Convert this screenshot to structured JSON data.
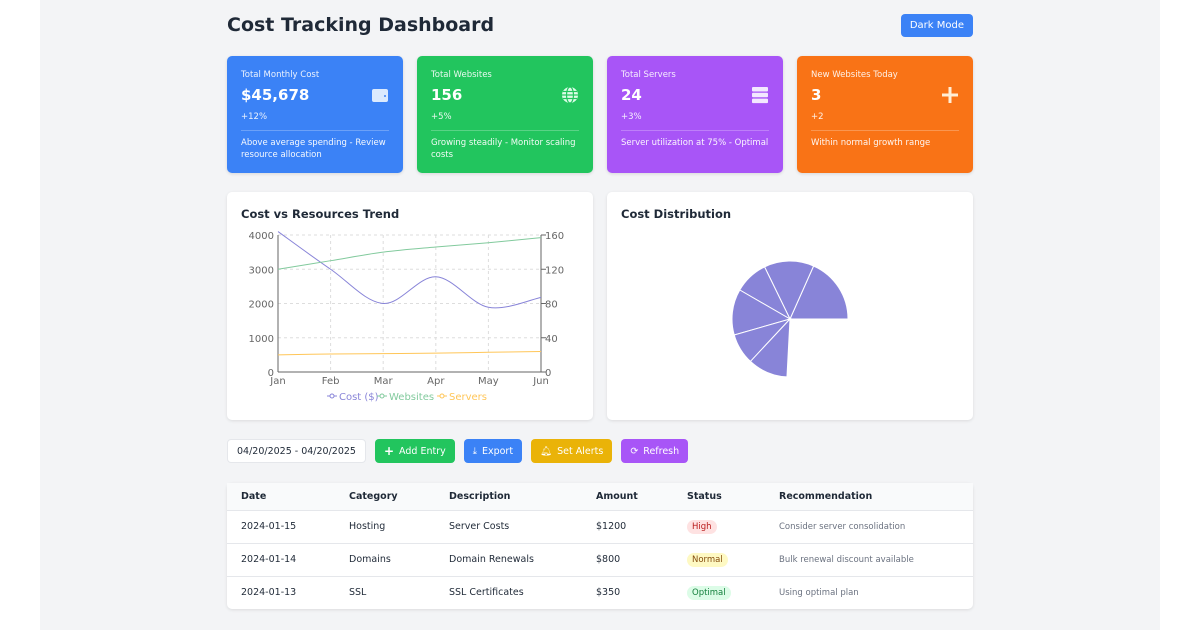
{
  "header": {
    "title": "Cost Tracking Dashboard",
    "dark_mode_label": "Dark Mode"
  },
  "cards": [
    {
      "label": "Total Monthly Cost",
      "value": "$45,678",
      "change": "+12%",
      "note": "Above average spending - Review resource allocation",
      "color": "#3b82f6",
      "icon": "wallet-icon"
    },
    {
      "label": "Total Websites",
      "value": "156",
      "change": "+5%",
      "note": "Growing steadily - Monitor scaling costs",
      "color": "#22c55e",
      "icon": "globe-icon"
    },
    {
      "label": "Total Servers",
      "value": "24",
      "change": "+3%",
      "note": "Server utilization at 75% - Optimal",
      "color": "#a855f7",
      "icon": "server-icon"
    },
    {
      "label": "New Websites Today",
      "value": "3",
      "change": "+2",
      "note": "Within normal growth range",
      "color": "#f97316",
      "icon": "plus-icon"
    }
  ],
  "chart_data": [
    {
      "type": "line",
      "title": "Cost vs Resources Trend",
      "categories": [
        "Jan",
        "Feb",
        "Mar",
        "Apr",
        "May",
        "Jun"
      ],
      "y_left": {
        "range": [
          0,
          4000
        ],
        "ticks": [
          "0",
          "1000",
          "2000",
          "3000",
          "4000"
        ]
      },
      "y_right": {
        "range": [
          0,
          160
        ],
        "ticks": [
          "0",
          "40",
          "80",
          "120",
          "160"
        ]
      },
      "grid": true,
      "legend": "bottom",
      "series": [
        {
          "name": "Cost ($)",
          "axis": "left",
          "color": "#8884d8",
          "values": [
            4100,
            3000,
            2000,
            2780,
            1890,
            2180
          ]
        },
        {
          "name": "Websites",
          "axis": "right",
          "color": "#82ca9d",
          "values": [
            120,
            130,
            140,
            146,
            151,
            157
          ]
        },
        {
          "name": "Servers",
          "axis": "right",
          "color": "#ffc658",
          "values": [
            20,
            21,
            21.5,
            22,
            23,
            24
          ]
        }
      ]
    },
    {
      "type": "pie",
      "title": "Cost Distribution",
      "color": "#8884d8",
      "values": [
        66,
        50,
        34,
        46,
        31,
        40
      ]
    }
  ],
  "actions": {
    "date_range": "04/20/2025 - 04/20/2025",
    "add": "Add Entry",
    "export": "Export",
    "alerts": "Set Alerts",
    "refresh": "Refresh"
  },
  "table": {
    "headers": [
      "Date",
      "Category",
      "Description",
      "Amount",
      "Status",
      "Recommendation"
    ],
    "rows": [
      [
        "2024-01-15",
        "Hosting",
        "Server Costs",
        "$1200",
        "High",
        "Consider server consolidation"
      ],
      [
        "2024-01-14",
        "Domains",
        "Domain Renewals",
        "$800",
        "Normal",
        "Bulk renewal discount available"
      ],
      [
        "2024-01-13",
        "SSL",
        "SSL Certificates",
        "$350",
        "Optimal",
        "Using optimal plan"
      ]
    ]
  }
}
